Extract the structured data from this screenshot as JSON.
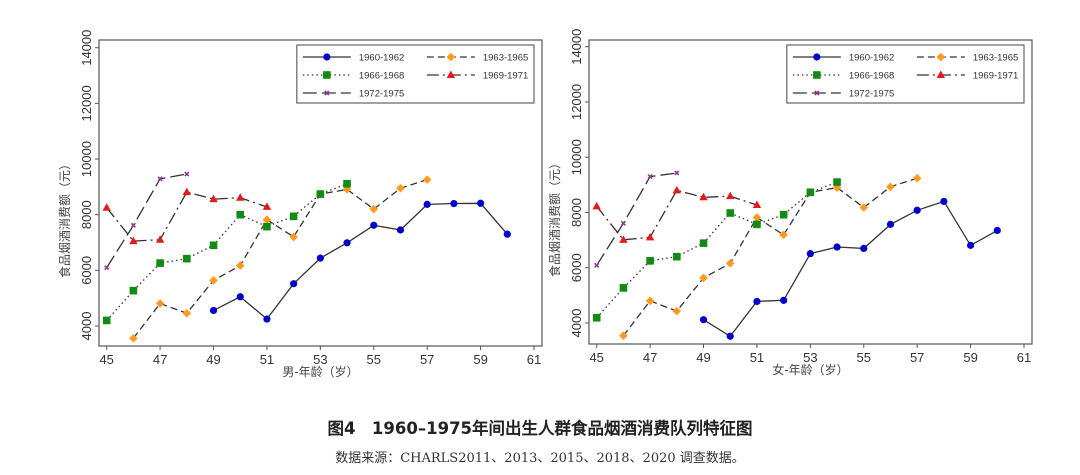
{
  "figure": {
    "title": "图4　1960–1975年间出生人群食品烟酒消费队列特征图",
    "source": "数据来源：CHARLS2011、2013、2015、2018、2020 调查数据。"
  },
  "chart_data": [
    {
      "type": "line",
      "panel": "male",
      "title": "",
      "xlabel": "男-年龄（岁）",
      "ylabel": "食品烟酒消费额（元）",
      "xlim": [
        45,
        61
      ],
      "ylim": [
        4000,
        14000
      ],
      "xticks": [
        45,
        47,
        49,
        51,
        53,
        55,
        57,
        59,
        61
      ],
      "yticks": [
        4000,
        6000,
        8000,
        10000,
        12000,
        14000
      ],
      "grid": false,
      "legend_position": "top-right",
      "series": [
        {
          "name": "1960-1962",
          "color": "#0000cc",
          "marker": "circle",
          "line": "solid",
          "x": [
            49,
            50,
            51,
            52,
            53,
            54,
            55,
            56,
            57,
            58,
            59,
            60
          ],
          "y": [
            4560,
            5050,
            4250,
            5520,
            6440,
            6990,
            7620,
            7450,
            8370,
            8400,
            8410,
            7300
          ]
        },
        {
          "name": "1963-1965",
          "color": "#ff9a1f",
          "marker": "diamond",
          "line": "dash",
          "x": [
            46,
            47,
            48,
            49,
            50,
            51,
            52,
            53,
            54,
            55,
            56,
            57
          ],
          "y": [
            3560,
            4810,
            4460,
            5640,
            6170,
            7820,
            7200,
            8740,
            8910,
            8200,
            8950,
            9260
          ]
        },
        {
          "name": "1966-1968",
          "color": "#138a13",
          "marker": "square",
          "line": "dot",
          "x": [
            45,
            46,
            47,
            48,
            49,
            50,
            51,
            52,
            53,
            54
          ],
          "y": [
            4200,
            5270,
            6260,
            6420,
            6900,
            8000,
            7570,
            7940,
            8740,
            9110
          ]
        },
        {
          "name": "1969-1971",
          "color": "#e41a1c",
          "marker": "triangle",
          "line": "longdashdot",
          "x": [
            45,
            46,
            47,
            48,
            49,
            50,
            51
          ],
          "y": [
            8250,
            7050,
            7100,
            8810,
            8560,
            8610,
            8280
          ]
        },
        {
          "name": "1972-1975",
          "color": "#8e3b8e",
          "marker": "x",
          "line": "longdash",
          "x": [
            45,
            46,
            47,
            48
          ],
          "y": [
            6100,
            7620,
            9290,
            9460
          ]
        }
      ]
    },
    {
      "type": "line",
      "panel": "female",
      "title": "",
      "xlabel": "女-年龄（岁）",
      "ylabel": "食品烟酒消费额（元）",
      "xlim": [
        45,
        61
      ],
      "ylim": [
        4000,
        14000
      ],
      "xticks": [
        45,
        47,
        49,
        51,
        53,
        55,
        57,
        59,
        61
      ],
      "yticks": [
        4000,
        6000,
        8000,
        10000,
        12000,
        14000
      ],
      "grid": false,
      "legend_position": "top-right",
      "series": [
        {
          "name": "1960-1962",
          "color": "#0000cc",
          "marker": "circle",
          "line": "solid",
          "x": [
            49,
            50,
            51,
            52,
            53,
            54,
            55,
            56,
            57,
            58,
            59,
            60
          ],
          "y": [
            4120,
            3520,
            4780,
            4820,
            6510,
            6750,
            6700,
            7570,
            8080,
            8400,
            6810,
            7350
          ]
        },
        {
          "name": "1963-1965",
          "color": "#ff9a1f",
          "marker": "diamond",
          "line": "dash",
          "x": [
            46,
            47,
            48,
            49,
            50,
            51,
            52,
            53,
            54,
            55,
            56,
            57
          ],
          "y": [
            3540,
            4800,
            4430,
            5630,
            6160,
            7820,
            7190,
            8730,
            8900,
            8180,
            8930,
            9240
          ]
        },
        {
          "name": "1966-1968",
          "color": "#138a13",
          "marker": "square",
          "line": "dot",
          "x": [
            45,
            46,
            47,
            48,
            49,
            50,
            51,
            52,
            53,
            54
          ],
          "y": [
            4190,
            5270,
            6250,
            6400,
            6890,
            7980,
            7570,
            7920,
            8730,
            9100
          ]
        },
        {
          "name": "1969-1971",
          "color": "#e41a1c",
          "marker": "triangle",
          "line": "longdashdot",
          "x": [
            45,
            46,
            47,
            48,
            49,
            50,
            51
          ],
          "y": [
            8220,
            7010,
            7100,
            8800,
            8550,
            8590,
            8270
          ]
        },
        {
          "name": "1972-1975",
          "color": "#8e3b8e",
          "marker": "x",
          "line": "longdash",
          "x": [
            45,
            46,
            47,
            48
          ],
          "y": [
            6090,
            7610,
            9300,
            9430
          ]
        }
      ]
    }
  ]
}
